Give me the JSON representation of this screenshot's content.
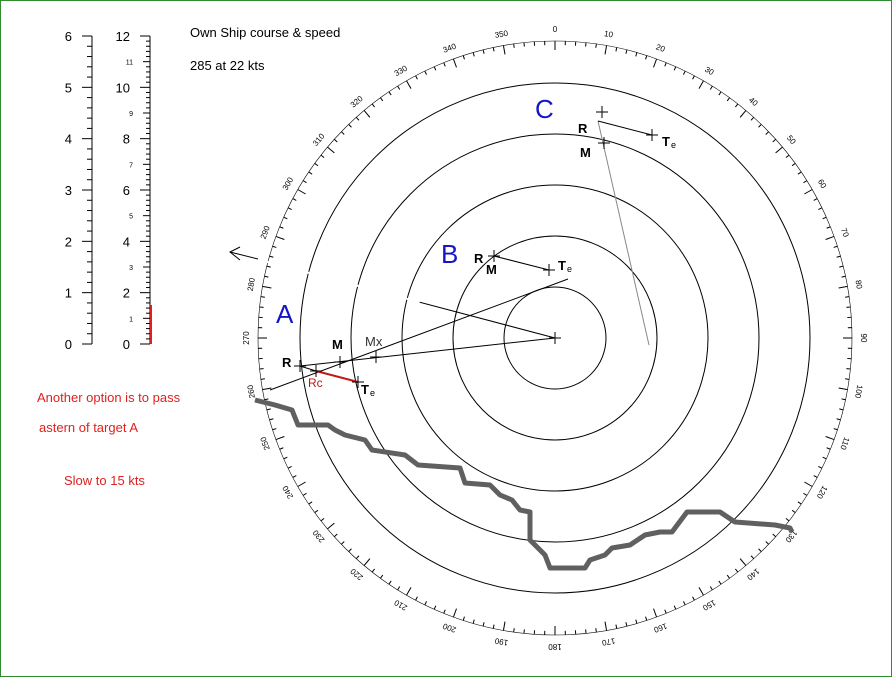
{
  "header": {
    "title": "Own Ship course & speed",
    "value": "285  at 22 kts"
  },
  "notes": [
    "Another option is to pass",
    "astern of target A",
    "Slow to 15 kts"
  ],
  "targets": {
    "A": {
      "label": "A",
      "points": [
        "R",
        "M",
        "Mx",
        "Rc",
        "T"
      ],
      "te_sub": "e"
    },
    "B": {
      "label": "B",
      "points": [
        "R",
        "M",
        "T"
      ],
      "te_sub": "e"
    },
    "C": {
      "label": "C",
      "points": [
        "R",
        "M",
        "T"
      ],
      "te_sub": "e"
    }
  },
  "scales": {
    "left": [
      "0",
      "1",
      "2",
      "3",
      "4",
      "5",
      "6"
    ],
    "right_major": [
      "0",
      "2",
      "4",
      "6",
      "8",
      "10",
      "12"
    ],
    "right_minor": [
      "1",
      "3",
      "5",
      "7",
      "9",
      "11"
    ]
  },
  "bearing_labels": [
    "0",
    "10",
    "20",
    "30",
    "40",
    "50",
    "60",
    "70",
    "80",
    "90",
    "100",
    "110",
    "120",
    "130",
    "140",
    "150",
    "160",
    "170",
    "180",
    "190",
    "200",
    "210",
    "220",
    "230",
    "240",
    "250",
    "260",
    "270",
    "280",
    "290",
    "300",
    "310",
    "320",
    "330",
    "340",
    "350"
  ],
  "colors": {
    "label_blue": "#1515c8",
    "red": "#e02020",
    "coast": "#606060",
    "frame": "#2e8b2e"
  }
}
